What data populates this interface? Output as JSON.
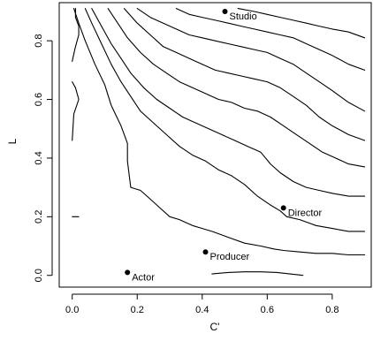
{
  "chart_data": {
    "type": "line",
    "subtype": "contour",
    "title": "",
    "xlabel": "C'",
    "ylabel": "L",
    "xlim": [
      -0.04,
      0.92
    ],
    "ylim": [
      -0.04,
      0.93
    ],
    "x_ticks": [
      0.0,
      0.2,
      0.4,
      0.6,
      0.8
    ],
    "x_tick_labels": [
      "0.0",
      "0.2",
      "0.4",
      "0.6",
      "0.8"
    ],
    "y_ticks": [
      0.0,
      0.2,
      0.4,
      0.6,
      0.8
    ],
    "y_tick_labels": [
      "0.0",
      "0.2",
      "0.4",
      "0.6",
      "0.8"
    ],
    "grid": false,
    "points": [
      {
        "label": "Studio",
        "x": 0.47,
        "y": 0.9
      },
      {
        "label": "Director",
        "x": 0.65,
        "y": 0.23
      },
      {
        "label": "Producer",
        "x": 0.41,
        "y": 0.08
      },
      {
        "label": "Actor",
        "x": 0.17,
        "y": 0.01
      }
    ],
    "contours": [
      {
        "x": [
          0.0,
          0.01,
          0.02,
          0.0
        ],
        "y": [
          0.2,
          0.2,
          0.2,
          0.2
        ]
      },
      {
        "x": [
          0.0,
          0.005,
          0.02,
          0.01,
          0.0
        ],
        "y": [
          0.46,
          0.55,
          0.6,
          0.64,
          0.66
        ]
      },
      {
        "x": [
          0.0,
          0.01,
          0.02,
          0.02,
          0.01,
          0.01
        ],
        "y": [
          0.73,
          0.78,
          0.82,
          0.85,
          0.88,
          0.91
        ]
      },
      {
        "x": [
          0.005,
          0.02,
          0.04,
          0.07,
          0.1,
          0.12,
          0.15,
          0.17,
          0.17,
          0.18,
          0.21,
          0.24,
          0.27,
          0.3,
          0.33,
          0.35,
          0.37,
          0.4,
          0.43,
          0.48,
          0.53,
          0.58,
          0.62,
          0.65,
          0.7,
          0.75,
          0.8,
          0.85,
          0.9
        ],
        "y": [
          0.91,
          0.86,
          0.8,
          0.72,
          0.65,
          0.58,
          0.51,
          0.45,
          0.39,
          0.3,
          0.29,
          0.26,
          0.23,
          0.2,
          0.19,
          0.18,
          0.17,
          0.16,
          0.15,
          0.13,
          0.11,
          0.1,
          0.09,
          0.085,
          0.08,
          0.075,
          0.075,
          0.07,
          0.07
        ]
      },
      {
        "x": [
          0.04,
          0.06,
          0.09,
          0.12,
          0.15,
          0.18,
          0.21,
          0.25,
          0.29,
          0.33,
          0.37,
          0.41,
          0.45,
          0.49,
          0.53,
          0.57,
          0.61,
          0.64,
          0.66,
          0.7,
          0.75,
          0.8,
          0.85,
          0.9
        ],
        "y": [
          0.91,
          0.86,
          0.79,
          0.72,
          0.66,
          0.61,
          0.56,
          0.52,
          0.48,
          0.44,
          0.41,
          0.39,
          0.36,
          0.34,
          0.31,
          0.27,
          0.24,
          0.22,
          0.2,
          0.19,
          0.17,
          0.16,
          0.15,
          0.15
        ]
      },
      {
        "x": [
          0.06,
          0.09,
          0.12,
          0.15,
          0.18,
          0.22,
          0.26,
          0.3,
          0.34,
          0.38,
          0.42,
          0.46,
          0.5,
          0.54,
          0.58,
          0.61,
          0.64,
          0.68,
          0.72,
          0.76,
          0.8,
          0.85,
          0.9
        ],
        "y": [
          0.91,
          0.85,
          0.79,
          0.74,
          0.69,
          0.64,
          0.6,
          0.57,
          0.54,
          0.52,
          0.5,
          0.48,
          0.46,
          0.44,
          0.42,
          0.38,
          0.35,
          0.32,
          0.3,
          0.29,
          0.28,
          0.27,
          0.27
        ]
      },
      {
        "x": [
          0.11,
          0.14,
          0.17,
          0.21,
          0.25,
          0.29,
          0.33,
          0.37,
          0.41,
          0.45,
          0.49,
          0.53,
          0.57,
          0.61,
          0.65,
          0.69,
          0.73,
          0.77,
          0.81,
          0.85,
          0.9
        ],
        "y": [
          0.91,
          0.86,
          0.81,
          0.76,
          0.72,
          0.69,
          0.66,
          0.64,
          0.62,
          0.6,
          0.59,
          0.57,
          0.56,
          0.54,
          0.51,
          0.48,
          0.45,
          0.42,
          0.4,
          0.38,
          0.37
        ]
      },
      {
        "x": [
          0.16,
          0.2,
          0.24,
          0.28,
          0.32,
          0.36,
          0.4,
          0.44,
          0.48,
          0.52,
          0.56,
          0.6,
          0.64,
          0.68,
          0.72,
          0.76,
          0.8,
          0.85,
          0.9
        ],
        "y": [
          0.91,
          0.86,
          0.82,
          0.78,
          0.76,
          0.74,
          0.72,
          0.7,
          0.69,
          0.68,
          0.67,
          0.66,
          0.64,
          0.61,
          0.58,
          0.54,
          0.51,
          0.48,
          0.46
        ]
      },
      {
        "x": [
          0.2,
          0.24,
          0.28,
          0.32,
          0.36,
          0.4,
          0.44,
          0.48,
          0.52,
          0.56,
          0.6,
          0.64,
          0.68,
          0.72,
          0.76,
          0.8,
          0.85,
          0.9
        ],
        "y": [
          0.91,
          0.88,
          0.86,
          0.84,
          0.82,
          0.81,
          0.8,
          0.79,
          0.78,
          0.77,
          0.76,
          0.74,
          0.72,
          0.69,
          0.66,
          0.63,
          0.59,
          0.56
        ]
      },
      {
        "x": [
          0.32,
          0.36,
          0.4,
          0.44,
          0.48,
          0.52,
          0.56,
          0.6,
          0.64,
          0.68,
          0.72,
          0.76,
          0.8,
          0.85,
          0.9
        ],
        "y": [
          0.91,
          0.89,
          0.88,
          0.87,
          0.86,
          0.85,
          0.84,
          0.83,
          0.82,
          0.81,
          0.79,
          0.77,
          0.75,
          0.72,
          0.7
        ]
      },
      {
        "x": [
          0.51,
          0.56,
          0.6,
          0.64,
          0.68,
          0.72,
          0.76,
          0.8,
          0.85,
          0.9
        ],
        "y": [
          0.91,
          0.9,
          0.89,
          0.88,
          0.87,
          0.86,
          0.85,
          0.84,
          0.83,
          0.81
        ]
      },
      {
        "x": [
          0.43,
          0.48,
          0.53,
          0.58,
          0.63,
          0.67,
          0.71
        ],
        "y": [
          0.005,
          0.01,
          0.012,
          0.012,
          0.01,
          0.005,
          0.0
        ]
      }
    ]
  }
}
